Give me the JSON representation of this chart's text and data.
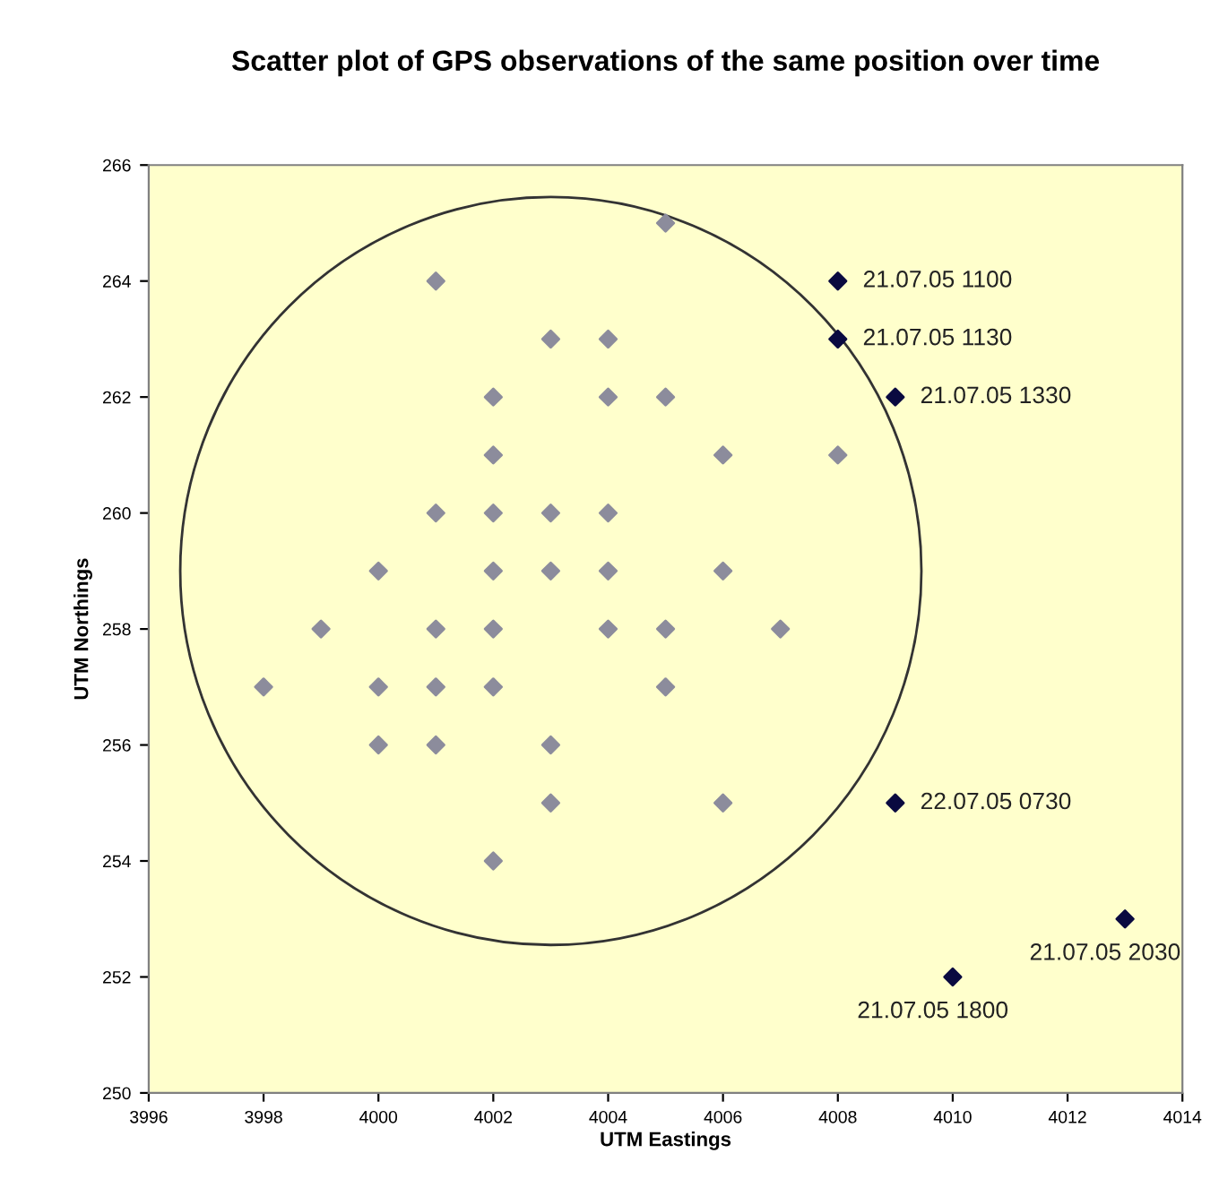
{
  "chart_data": {
    "type": "scatter",
    "title": "Scatter plot of GPS observations of the same position over time",
    "xlabel": "UTM Eastings",
    "ylabel": "UTM Northings",
    "xlim": [
      3996,
      4014
    ],
    "xticks": [
      3996,
      3998,
      4000,
      4002,
      4004,
      4006,
      4008,
      4010,
      4012,
      4014
    ],
    "ylim": [
      250,
      266
    ],
    "yticks": [
      250,
      252,
      254,
      256,
      258,
      260,
      262,
      264,
      266
    ],
    "grid": false,
    "legend": false,
    "marker": "diamond",
    "series": [
      {
        "color": "#8c8c9c",
        "x": [
          4001,
          4003,
          4004,
          4002,
          4004,
          4002,
          4003,
          4001,
          4002,
          4000,
          4002,
          4003,
          4004,
          3999,
          4001,
          4002,
          4004,
          4004,
          4005,
          4005,
          4006,
          4008,
          4006,
          4005,
          4007,
          3998,
          4000,
          4001,
          4002,
          4000,
          4001,
          4003,
          4003,
          4002,
          4005,
          4006
        ],
        "values": [
          264,
          263,
          263,
          262,
          262,
          261,
          260,
          260,
          260,
          259,
          259,
          259,
          259,
          258,
          258,
          258,
          258,
          260,
          265,
          262,
          261,
          261,
          259,
          258,
          258,
          257,
          257,
          257,
          257,
          256,
          256,
          256,
          255,
          254,
          257,
          255
        ]
      },
      {
        "color": "#0a0a40",
        "x": [
          4008,
          4008,
          4009,
          4010,
          4013,
          4009
        ],
        "values": [
          264,
          263,
          262,
          252,
          253,
          255
        ]
      }
    ],
    "annotations": [
      {
        "text": "21.07.05 1100",
        "x": 4008,
        "y": 264
      },
      {
        "text": "21.07.05 1130",
        "x": 4008,
        "y": 263
      },
      {
        "text": "21.07.05 1330",
        "x": 4009,
        "y": 262
      },
      {
        "text": "21.07.05 1800",
        "x": 4010,
        "y": 252
      },
      {
        "text": "21.07.05 2030",
        "x": 4013,
        "y": 253
      },
      {
        "text": "22.07.05 0730",
        "x": 4009,
        "y": 255
      }
    ]
  }
}
